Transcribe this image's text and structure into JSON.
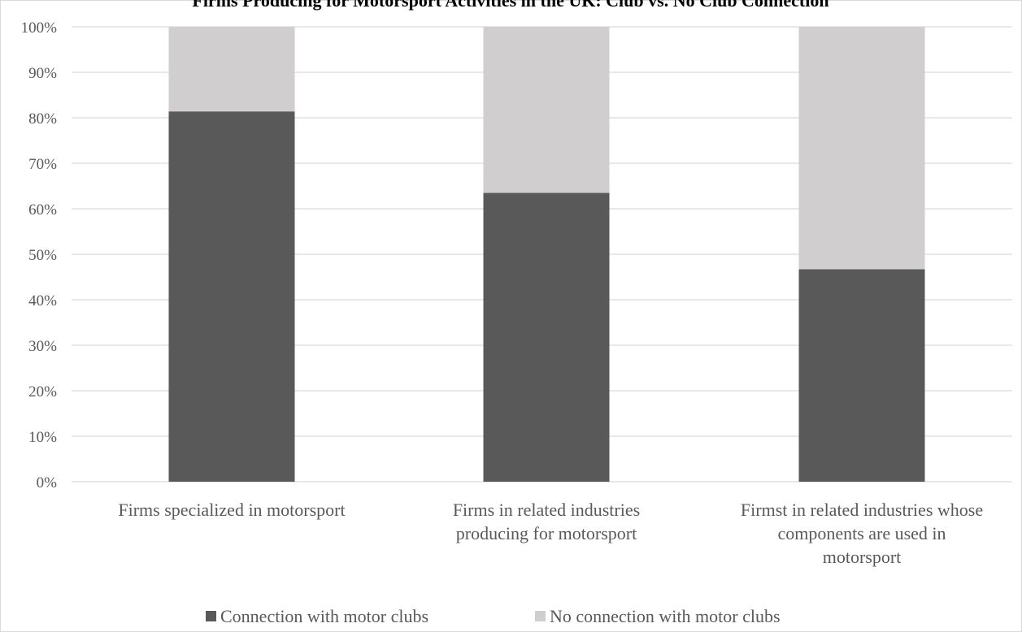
{
  "chart_data": {
    "type": "bar",
    "stacked": true,
    "title": "Firms Producing for Motorsport Activities in the UK: Club vs. No Club Connection",
    "xlabel": "",
    "ylabel": "",
    "ylim": [
      0,
      100
    ],
    "y_unit": "%",
    "y_ticks": [
      "0%",
      "10%",
      "20%",
      "30%",
      "40%",
      "50%",
      "60%",
      "70%",
      "80%",
      "90%",
      "100%"
    ],
    "categories": [
      [
        "Firms specialized in motorsport"
      ],
      [
        "Firms in related industries",
        "producing for motorsport"
      ],
      [
        "Firmst in related industries whose",
        "components are used in",
        "motorsport"
      ]
    ],
    "series": [
      {
        "name": "Connection with motor clubs",
        "color": "#595959",
        "values": [
          81.4,
          63.5,
          46.7
        ]
      },
      {
        "name": "No connection with motor clubs",
        "color": "#d0cece",
        "values": [
          18.6,
          36.5,
          53.3
        ]
      }
    ],
    "grid": true,
    "legend_position": "bottom",
    "colors": {
      "gridline": "#d9d9d9",
      "axis_text": "#595959",
      "title": "#000000",
      "border": "#d9d9d9"
    }
  }
}
